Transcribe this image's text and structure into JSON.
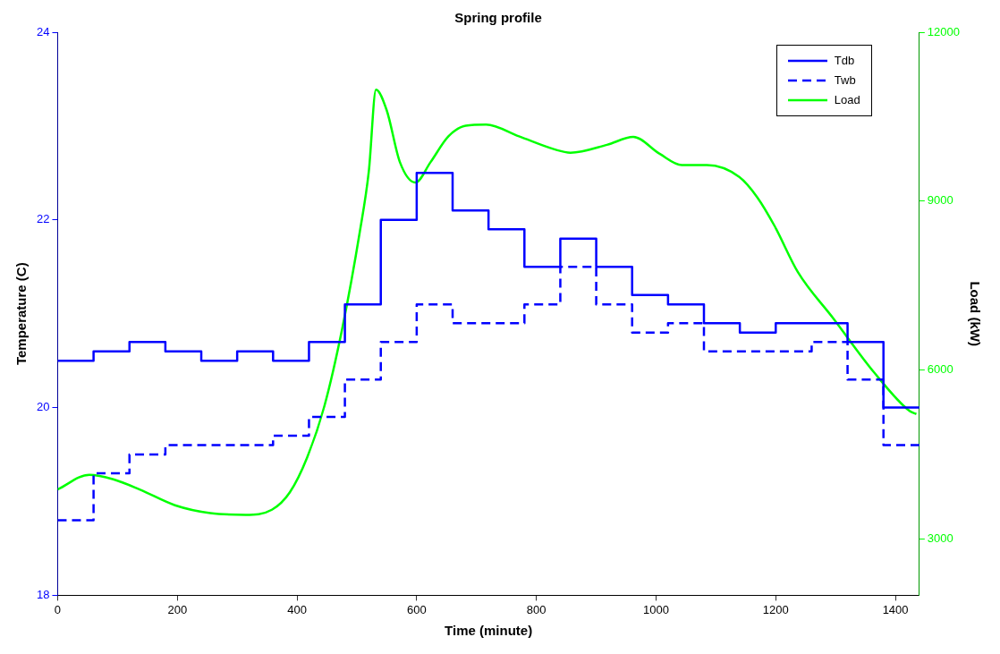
{
  "chart_data": {
    "type": "step",
    "title": "Spring profile",
    "xlabel": "Time (minute)",
    "ylabel": "Temperature (C)",
    "y2label": "Load (kW)",
    "xlim": [
      0,
      1440
    ],
    "xticks": [
      0,
      200,
      400,
      600,
      800,
      1000,
      1200,
      1400
    ],
    "ylim": [
      18,
      24
    ],
    "yticks": [
      18,
      20,
      22,
      24
    ],
    "y2lim": [
      2000,
      12000
    ],
    "y2ticks": [
      3000,
      6000,
      9000,
      12000
    ],
    "legend": "top right",
    "grid": false,
    "series": [
      {
        "name": "Tdb",
        "color": "#0000ff",
        "line_style": "solid",
        "x": [
          0,
          60,
          120,
          180,
          240,
          300,
          360,
          420,
          480,
          540,
          600,
          660,
          720,
          780,
          840,
          900,
          960,
          1020,
          1080,
          1140,
          1200,
          1260,
          1320,
          1380,
          1440
        ],
        "values": [
          20.5,
          20.6,
          20.7,
          20.6,
          20.5,
          20.6,
          20.5,
          20.7,
          21.1,
          22.0,
          22.5,
          22.1,
          21.9,
          21.5,
          21.8,
          21.5,
          21.2,
          21.1,
          20.9,
          20.8,
          20.9,
          20.9,
          20.7,
          20.0,
          20.0
        ]
      },
      {
        "name": "Twb",
        "color": "#0000ff",
        "line_style": "dashed",
        "x": [
          0,
          60,
          120,
          180,
          240,
          300,
          360,
          420,
          480,
          540,
          600,
          660,
          720,
          780,
          840,
          900,
          960,
          1020,
          1080,
          1140,
          1200,
          1260,
          1320,
          1380,
          1440
        ],
        "values": [
          18.8,
          19.3,
          19.5,
          19.6,
          19.6,
          19.6,
          19.7,
          19.9,
          20.3,
          20.7,
          21.1,
          20.9,
          20.9,
          21.1,
          21.5,
          21.1,
          20.8,
          20.9,
          20.6,
          20.6,
          20.6,
          20.7,
          20.3,
          19.6,
          19.6
        ]
      },
      {
        "name": "Load",
        "type": "line",
        "axis": "y2",
        "color": "#00ff00",
        "line_style": "solid",
        "x": [
          0,
          53,
          93,
          137,
          196,
          255,
          314,
          358,
          388,
          417,
          446,
          476,
          505,
          520,
          532,
          550,
          572,
          598,
          623,
          653,
          682,
          716,
          771,
          830,
          857,
          918,
          962,
          1006,
          1043,
          1085,
          1139,
          1169,
          1198,
          1237,
          1296,
          1365,
          1424,
          1435
        ],
        "values": [
          3880,
          4140,
          4060,
          3880,
          3600,
          3460,
          3430,
          3520,
          3830,
          4450,
          5370,
          6760,
          8460,
          9530,
          10980,
          10610,
          9690,
          9330,
          9690,
          10150,
          10340,
          10360,
          10150,
          9920,
          9860,
          10000,
          10140,
          9840,
          9640,
          9640,
          9430,
          9070,
          8560,
          7740,
          6920,
          5950,
          5270,
          5220
        ]
      }
    ]
  }
}
